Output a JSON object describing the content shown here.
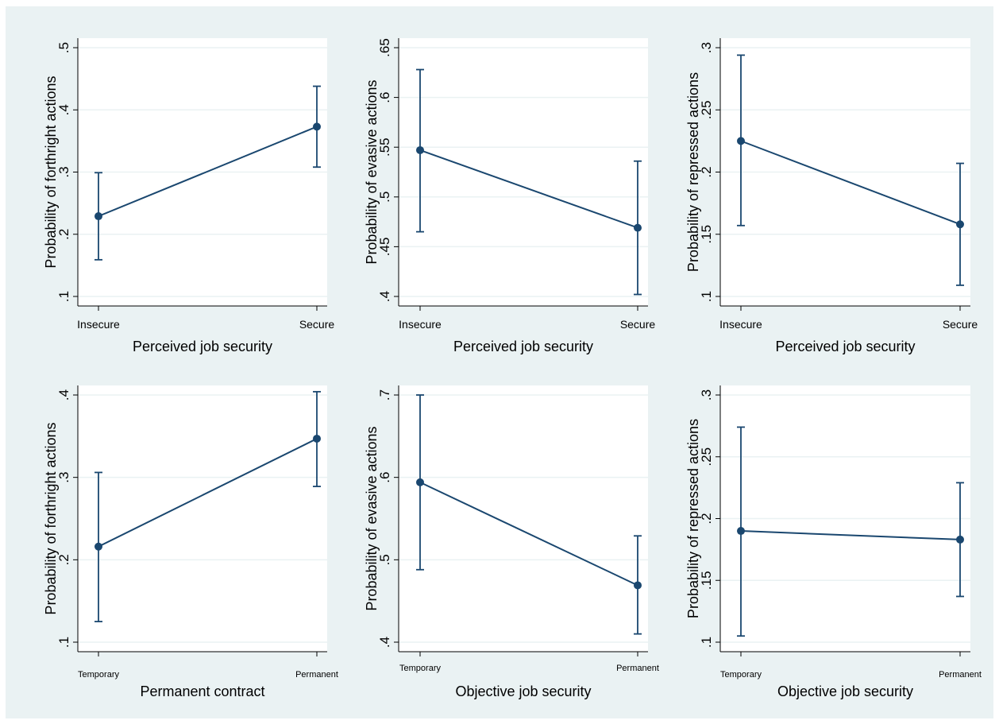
{
  "colors": {
    "background": "#eaf2f3",
    "plot_region": "#ffffff",
    "grid": "#eaf2f3",
    "series": "#1a476f",
    "axis": "#000000"
  },
  "chart_data": [
    {
      "type": "line",
      "categories": [
        "Insecure",
        "Secure"
      ],
      "xlabel": "Perceived job security",
      "ylabel": "Probability of forthright actions",
      "ylim": [
        0.1,
        0.5
      ],
      "yticks": [
        0.1,
        0.2,
        0.3,
        0.4,
        0.5
      ],
      "ytick_labels": [
        ".1",
        ".2",
        ".3",
        ".4",
        ".5"
      ],
      "grid": true,
      "values": [
        0.229,
        0.373
      ],
      "ci_lower": [
        0.159,
        0.308
      ],
      "ci_upper": [
        0.299,
        0.438
      ]
    },
    {
      "type": "line",
      "categories": [
        "Insecure",
        "Secure"
      ],
      "xlabel": "Perceived job security",
      "ylabel": "Probability of evasive actions",
      "ylim": [
        0.4,
        0.65
      ],
      "yticks": [
        0.4,
        0.45,
        0.5,
        0.55,
        0.6,
        0.65
      ],
      "ytick_labels": [
        ".4",
        ".45",
        ".5",
        ".55",
        ".6",
        ".65"
      ],
      "grid": true,
      "values": [
        0.547,
        0.469
      ],
      "ci_lower": [
        0.465,
        0.402
      ],
      "ci_upper": [
        0.628,
        0.536
      ]
    },
    {
      "type": "line",
      "categories": [
        "Insecure",
        "Secure"
      ],
      "xlabel": "Perceived job security",
      "ylabel": "Probability of repressed actions",
      "ylim": [
        0.1,
        0.3
      ],
      "yticks": [
        0.1,
        0.15,
        0.2,
        0.25,
        0.3
      ],
      "ytick_labels": [
        ".1",
        ".15",
        ".2",
        ".25",
        ".3"
      ],
      "grid": true,
      "values": [
        0.225,
        0.158
      ],
      "ci_lower": [
        0.157,
        0.109
      ],
      "ci_upper": [
        0.294,
        0.207
      ]
    },
    {
      "type": "line",
      "categories": [
        "Temporary",
        "Permanent"
      ],
      "small_tick_labels": true,
      "xlabel": "Permanent contract",
      "ylabel": "Probability of forthright actions",
      "ylim": [
        0.1,
        0.4
      ],
      "yticks": [
        0.1,
        0.2,
        0.3,
        0.4
      ],
      "ytick_labels": [
        ".1",
        ".2",
        ".3",
        ".4"
      ],
      "grid": true,
      "values": [
        0.216,
        0.347
      ],
      "ci_lower": [
        0.125,
        0.289
      ],
      "ci_upper": [
        0.306,
        0.404
      ]
    },
    {
      "type": "line",
      "categories": [
        "Temporary",
        "Permanent"
      ],
      "small_tick_labels": true,
      "xlabel": "Objective job security",
      "ylabel": "Probability of evasive actions",
      "ylim": [
        0.4,
        0.7
      ],
      "yticks": [
        0.4,
        0.5,
        0.6,
        0.7
      ],
      "ytick_labels": [
        ".4",
        ".5",
        ".6",
        ".7"
      ],
      "grid": true,
      "values": [
        0.594,
        0.469
      ],
      "ci_lower": [
        0.488,
        0.41
      ],
      "ci_upper": [
        0.7,
        0.529
      ]
    },
    {
      "type": "line",
      "categories": [
        "Temporary",
        "Permanent"
      ],
      "small_tick_labels": true,
      "xlabel": "Objective job security",
      "ylabel": "Probability of repressed actions",
      "ylim": [
        0.1,
        0.3
      ],
      "yticks": [
        0.1,
        0.15,
        0.2,
        0.25,
        0.3
      ],
      "ytick_labels": [
        ".1",
        ".15",
        ".2",
        ".25",
        ".3"
      ],
      "grid": true,
      "values": [
        0.19,
        0.183
      ],
      "ci_lower": [
        0.105,
        0.137
      ],
      "ci_upper": [
        0.274,
        0.229
      ]
    }
  ]
}
